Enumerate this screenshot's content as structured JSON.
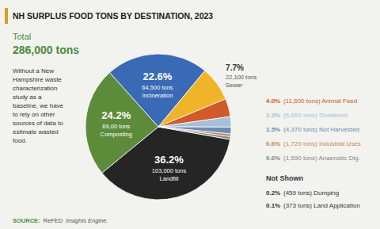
{
  "chart_data": {
    "type": "pie",
    "title": "NH SURPLUS FOOD TONS BY DESTINATION, 2023",
    "total_label": "Total",
    "total_value": "286,000 tons",
    "description": "Without a New\nHampshire waste\ncharacterization\nstudy as a\nbaseline, we have\nto rely on other\nsources of data to\nestimate wasted\nfood.",
    "source": [
      "SOURCE:",
      "ReFED",
      "Insights Engine."
    ],
    "categories": [
      "Landfill",
      "Composting",
      "Incineration",
      "Sewer",
      "(11,600 tons) Animal Feed",
      "(6,660 tons) Donations",
      "(4,370 tons) Not Harvested",
      "(1,720 tons) Industrial Uses",
      "(1,590 tons) Anaerobic Dig."
    ],
    "values": [
      36.2,
      24.2,
      22.6,
      7.7,
      4.0,
      2.3,
      1.5,
      0.6,
      0.6
    ],
    "value_labels": [
      "36.2%",
      "24.2%",
      "22.6%",
      "7.7%",
      "4.0%",
      "2.3%",
      "1.5%",
      "0.6%",
      "0.6%"
    ],
    "tons": [
      "103,000 tons",
      "69,00 tons",
      "64,500 tons",
      "22,100 tons",
      null,
      null,
      null,
      null,
      null
    ],
    "colors": [
      "#252525",
      "#5c8c3a",
      "#3a6ab5",
      "#f0b429",
      "#d05a2a",
      "#a8bfd8",
      "#6a8db5",
      "#c8845a",
      "#888888"
    ],
    "data_labels": true,
    "not_shown": {
      "title": "Not Shown",
      "items": [
        {
          "value_label": "0.2%",
          "text": "(459 tons) Dumping"
        },
        {
          "value_label": "0.1%",
          "text": "(373 tons) Land Application"
        }
      ]
    }
  }
}
